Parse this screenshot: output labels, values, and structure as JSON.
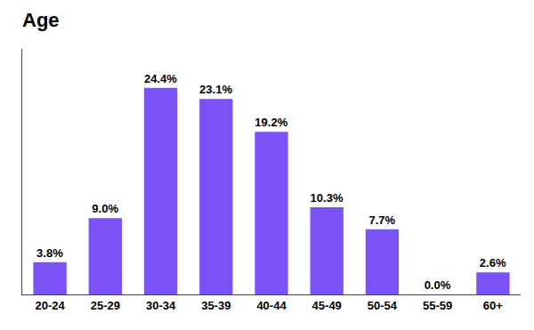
{
  "chart_data": {
    "type": "bar",
    "title": "Age",
    "categories": [
      "20-24",
      "25-29",
      "30-34",
      "35-39",
      "40-44",
      "45-49",
      "50-54",
      "55-59",
      "60+"
    ],
    "values": [
      3.8,
      9.0,
      24.4,
      23.1,
      19.2,
      10.3,
      7.7,
      0.0,
      2.6
    ],
    "value_labels": [
      "3.8%",
      "9.0%",
      "24.4%",
      "23.1%",
      "19.2%",
      "10.3%",
      "7.7%",
      "0.0%",
      "2.6%"
    ],
    "data_labels": true,
    "color": "#7B52F5",
    "ylim": [
      0,
      29
    ],
    "tick_labels": "x",
    "grid": false
  }
}
